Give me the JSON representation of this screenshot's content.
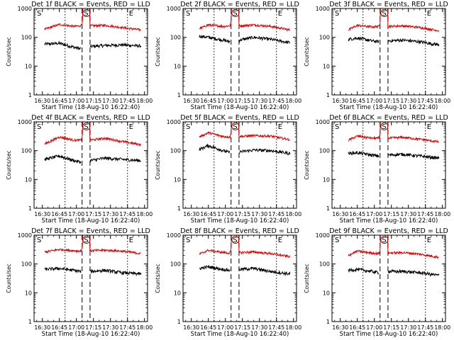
{
  "figure": {
    "panels": [
      {
        "title": "Det 1f BLACK = Events, RED = LLD"
      },
      {
        "title": "Det 2f BLACK = Events, RED = LLD"
      },
      {
        "title": "Det 3f BLACK = Events, RED = LLD"
      },
      {
        "title": "Det 4f BLACK = Events, RED = LLD"
      },
      {
        "title": "Det 5f BLACK = Events, RED = LLD"
      },
      {
        "title": "Det 6f BLACK = Events, RED = LLD"
      },
      {
        "title": "Det 7f BLACK = Events, RED = LLD"
      },
      {
        "title": "Det 8f BLACK = Events, RED = LLD"
      },
      {
        "title": "Det 9f BLACK = Events, RED = LLD"
      }
    ],
    "xlabel": "Start Time (18-Aug-10 16:22:40)",
    "ylabel": "Counts/sec",
    "x_ticks": [
      "16:30",
      "16:45",
      "17:00",
      "17:15",
      "17:30",
      "17:45",
      "18:00"
    ],
    "y_ticks": [
      "1",
      "10",
      "100",
      "1000"
    ],
    "markers": {
      "start": "S",
      "end": "E"
    },
    "colors": {
      "events": "#000000",
      "lld": "#dd0000",
      "axis": "#000000"
    }
  },
  "chart_data": [
    {
      "type": "line",
      "title": "Det 1f BLACK = Events, RED = LLD",
      "xlabel": "Start Time (18-Aug-10 16:22:40)",
      "ylabel": "Counts/sec",
      "y_scale": "log",
      "ylim": [
        1,
        1000
      ],
      "xlim": [
        "16:22:40",
        "18:02:40"
      ],
      "flag_lines": [
        "16:50",
        "17:45"
      ],
      "gap_lines": [
        "17:05",
        "17:12"
      ],
      "x": [
        "16:32",
        "16:45",
        "16:58",
        "17:04",
        "17:09",
        "17:12",
        "17:25",
        "17:40",
        "17:57"
      ],
      "series": [
        {
          "name": "BLACK = Events",
          "values": [
            58,
            62,
            45,
            40,
            null,
            48,
            52,
            55,
            50
          ]
        },
        {
          "name": "RED = LLD",
          "values": [
            190,
            280,
            240,
            250,
            1000,
            250,
            260,
            220,
            180
          ]
        }
      ]
    },
    {
      "type": "line",
      "title": "Det 2f BLACK = Events, RED = LLD",
      "xlabel": "Start Time (18-Aug-10 16:22:40)",
      "ylabel": "Counts/sec",
      "y_scale": "log",
      "ylim": [
        1,
        1000
      ],
      "xlim": [
        "16:22:40",
        "18:02:40"
      ],
      "flag_lines": [
        "16:50",
        "17:45"
      ],
      "gap_lines": [
        "17:05",
        "17:12"
      ],
      "x": [
        "16:37",
        "16:45",
        "16:58",
        "17:04",
        "17:09",
        "17:12",
        "17:25",
        "17:40",
        "17:57"
      ],
      "series": [
        {
          "name": "BLACK = Events",
          "values": [
            110,
            100,
            80,
            70,
            null,
            80,
            100,
            85,
            65
          ]
        },
        {
          "name": "RED = LLD",
          "values": [
            200,
            270,
            240,
            250,
            1000,
            250,
            270,
            240,
            180
          ]
        }
      ]
    },
    {
      "type": "line",
      "title": "Det 3f BLACK = Events, RED = LLD",
      "xlabel": "Start Time (18-Aug-10 16:22:40)",
      "ylabel": "Counts/sec",
      "y_scale": "log",
      "ylim": [
        1,
        1000
      ],
      "xlim": [
        "16:22:40",
        "18:02:40"
      ],
      "flag_lines": [
        "16:50",
        "17:45"
      ],
      "gap_lines": [
        "17:05",
        "17:12"
      ],
      "x": [
        "16:37",
        "16:45",
        "16:58",
        "17:04",
        "17:09",
        "17:12",
        "17:25",
        "17:40",
        "17:57"
      ],
      "series": [
        {
          "name": "BLACK = Events",
          "values": [
            85,
            95,
            75,
            70,
            null,
            75,
            80,
            70,
            55
          ]
        },
        {
          "name": "RED = LLD",
          "values": [
            180,
            260,
            230,
            240,
            1000,
            240,
            250,
            220,
            170
          ]
        }
      ]
    },
    {
      "type": "line",
      "title": "Det 4f BLACK = Events, RED = LLD",
      "xlabel": "Start Time (18-Aug-10 16:22:40)",
      "ylabel": "Counts/sec",
      "y_scale": "log",
      "ylim": [
        1,
        1000
      ],
      "xlim": [
        "16:22:40",
        "18:02:40"
      ],
      "flag_lines": [
        "16:50",
        "17:45"
      ],
      "gap_lines": [
        "17:05",
        "17:12"
      ],
      "x": [
        "16:32",
        "16:45",
        "16:58",
        "17:04",
        "17:09",
        "17:12",
        "17:25",
        "17:40",
        "17:57"
      ],
      "series": [
        {
          "name": "BLACK = Events",
          "values": [
            50,
            65,
            45,
            40,
            null,
            45,
            55,
            50,
            45
          ]
        },
        {
          "name": "RED = LLD",
          "values": [
            170,
            300,
            230,
            230,
            1000,
            230,
            270,
            210,
            160
          ]
        }
      ]
    },
    {
      "type": "line",
      "title": "Det 5f BLACK = Events, RED = LLD",
      "xlabel": "Start Time (18-Aug-10 16:22:40)",
      "ylabel": "Counts/sec",
      "y_scale": "log",
      "ylim": [
        1,
        1000
      ],
      "xlim": [
        "16:22:40",
        "18:02:40"
      ],
      "flag_lines": [
        "16:50",
        "17:45"
      ],
      "gap_lines": [
        "17:05",
        "17:12"
      ],
      "x": [
        "16:37",
        "16:45",
        "16:58",
        "17:04",
        "17:09",
        "17:12",
        "17:25",
        "17:40",
        "17:57"
      ],
      "series": [
        {
          "name": "BLACK = Events",
          "values": [
            110,
            150,
            100,
            85,
            null,
            90,
            105,
            100,
            80
          ]
        },
        {
          "name": "RED = LLD",
          "values": [
            300,
            420,
            310,
            300,
            1000,
            310,
            330,
            320,
            240
          ]
        }
      ]
    },
    {
      "type": "line",
      "title": "Det 6f BLACK = Events, RED = LLD",
      "xlabel": "Start Time (18-Aug-10 16:22:40)",
      "ylabel": "Counts/sec",
      "y_scale": "log",
      "ylim": [
        1,
        1000
      ],
      "xlim": [
        "16:22:40",
        "18:02:40"
      ],
      "flag_lines": [
        "16:50",
        "17:45"
      ],
      "gap_lines": [
        "17:05",
        "17:12"
      ],
      "x": [
        "16:37",
        "16:45",
        "16:58",
        "17:04",
        "17:09",
        "17:12",
        "17:25",
        "17:40",
        "17:57"
      ],
      "series": [
        {
          "name": "BLACK = Events",
          "values": [
            80,
            85,
            70,
            65,
            null,
            70,
            75,
            65,
            55
          ]
        },
        {
          "name": "RED = LLD",
          "values": [
            230,
            320,
            270,
            270,
            1000,
            270,
            290,
            250,
            200
          ]
        }
      ]
    },
    {
      "type": "line",
      "title": "Det 7f BLACK = Events, RED = LLD",
      "xlabel": "Start Time (18-Aug-10 16:22:40)",
      "ylabel": "Counts/sec",
      "y_scale": "log",
      "ylim": [
        1,
        1000
      ],
      "xlim": [
        "16:22:40",
        "18:02:40"
      ],
      "flag_lines": [
        "16:50",
        "17:45"
      ],
      "gap_lines": [
        "17:05",
        "17:12"
      ],
      "x": [
        "16:32",
        "16:45",
        "16:58",
        "17:04",
        "17:09",
        "17:12",
        "17:25",
        "17:40",
        "17:57"
      ],
      "series": [
        {
          "name": "BLACK = Events",
          "values": [
            65,
            70,
            60,
            55,
            null,
            55,
            60,
            50,
            45
          ]
        },
        {
          "name": "RED = LLD",
          "values": [
            260,
            320,
            290,
            280,
            1000,
            290,
            300,
            280,
            230
          ]
        }
      ]
    },
    {
      "type": "line",
      "title": "Det 8f BLACK = Events, RED = LLD",
      "xlabel": "Start Time (18-Aug-10 16:22:40)",
      "ylabel": "Counts/sec",
      "y_scale": "log",
      "ylim": [
        1,
        1000
      ],
      "xlim": [
        "16:22:40",
        "18:02:40"
      ],
      "flag_lines": [
        "16:50",
        "17:45"
      ],
      "gap_lines": [
        "17:05",
        "17:12"
      ],
      "x": [
        "16:37",
        "16:45",
        "16:58",
        "17:04",
        "17:09",
        "17:12",
        "17:25",
        "17:40",
        "17:57"
      ],
      "series": [
        {
          "name": "BLACK = Events",
          "values": [
            70,
            80,
            65,
            60,
            null,
            65,
            70,
            55,
            45
          ]
        },
        {
          "name": "RED = LLD",
          "values": [
            220,
            300,
            250,
            240,
            1000,
            250,
            260,
            230,
            180
          ]
        }
      ]
    },
    {
      "type": "line",
      "title": "Det 9f BLACK = Events, RED = LLD",
      "xlabel": "Start Time (18-Aug-10 16:22:40)",
      "ylabel": "Counts/sec",
      "y_scale": "log",
      "ylim": [
        1,
        1000
      ],
      "xlim": [
        "16:22:40",
        "18:02:40"
      ],
      "flag_lines": [
        "16:50",
        "17:45"
      ],
      "gap_lines": [
        "17:05",
        "17:12"
      ],
      "x": [
        "16:37",
        "16:45",
        "16:58",
        "17:04",
        "17:09",
        "17:12",
        "17:25",
        "17:40",
        "17:57"
      ],
      "series": [
        {
          "name": "BLACK = Events",
          "values": [
            60,
            65,
            55,
            50,
            null,
            55,
            55,
            50,
            40
          ]
        },
        {
          "name": "RED = LLD",
          "values": [
            200,
            280,
            240,
            230,
            1000,
            240,
            250,
            220,
            170
          ]
        }
      ]
    }
  ]
}
